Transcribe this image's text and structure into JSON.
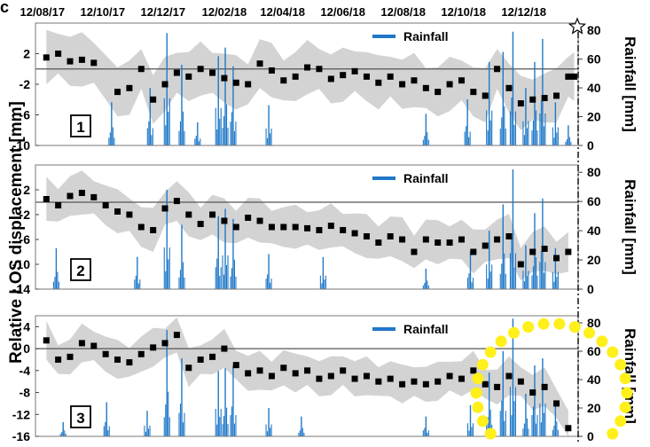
{
  "figure_label": "c",
  "y_axis_title": "Relative LOS displacement [mm]",
  "y2_axis_title": "Rainfall [mm]",
  "x_tick_labels": [
    "12/08/17",
    "12/10/17",
    "12/12/17",
    "12/02/18",
    "12/04/18",
    "12/06/18",
    "12/08/18",
    "12/10/18",
    "12/12/18"
  ],
  "event_marker": "star",
  "chart_data": [
    {
      "type": "scatter",
      "panel_label": "1",
      "legend": "Rainfall",
      "legend_placement": "top",
      "ylim": [
        -10,
        6
      ],
      "y_ticks": [
        "2",
        "-2",
        "-6",
        "-10"
      ],
      "y2lim": [
        0,
        85
      ],
      "y2_ticks": [
        "80",
        "60",
        "40",
        "20",
        "0"
      ],
      "x_range": [
        "2017-07-25",
        "2019-01-25"
      ],
      "reference_line": 0,
      "displacement": [
        [
          "2017-08-05",
          1.5
        ],
        [
          "2017-08-17",
          2
        ],
        [
          "2017-08-29",
          1
        ],
        [
          "2017-09-10",
          1.2
        ],
        [
          "2017-09-22",
          0.8
        ],
        [
          "2017-10-16",
          -3
        ],
        [
          "2017-10-28",
          -2.5
        ],
        [
          "2017-11-09",
          0
        ],
        [
          "2017-11-21",
          -4
        ],
        [
          "2017-12-03",
          -2
        ],
        [
          "2017-12-15",
          -0.5
        ],
        [
          "2017-12-27",
          -1
        ],
        [
          "2018-01-08",
          0
        ],
        [
          "2018-01-20",
          -0.5
        ],
        [
          "2018-02-01",
          -1.2
        ],
        [
          "2018-02-13",
          -1.8
        ],
        [
          "2018-02-25",
          -2
        ],
        [
          "2018-03-09",
          0.7
        ],
        [
          "2018-03-21",
          -0.2
        ],
        [
          "2018-04-02",
          -1.5
        ],
        [
          "2018-04-14",
          -1
        ],
        [
          "2018-04-26",
          0.2
        ],
        [
          "2018-05-08",
          0
        ],
        [
          "2018-05-20",
          -1.3
        ],
        [
          "2018-06-01",
          -0.8
        ],
        [
          "2018-06-13",
          -0.3
        ],
        [
          "2018-06-25",
          -1
        ],
        [
          "2018-07-07",
          -1.8
        ],
        [
          "2018-07-19",
          -1
        ],
        [
          "2018-07-31",
          -2
        ],
        [
          "2018-08-12",
          -1.5
        ],
        [
          "2018-08-24",
          -2.5
        ],
        [
          "2018-09-05",
          -3
        ],
        [
          "2018-09-17",
          -2
        ],
        [
          "2018-09-29",
          -1.5
        ],
        [
          "2018-10-11",
          -3
        ],
        [
          "2018-10-23",
          -3.5
        ],
        [
          "2018-11-04",
          0
        ],
        [
          "2018-11-16",
          -2.5
        ],
        [
          "2018-11-28",
          -4.5
        ],
        [
          "2018-12-10",
          -4
        ],
        [
          "2018-12-22",
          -3.8
        ],
        [
          "2019-01-03",
          -3.5
        ],
        [
          "2019-01-15",
          -1
        ],
        [
          "2019-01-21",
          -1
        ]
      ],
      "uncertainty_band_halfwidth": 3,
      "rainfall_spikes": [
        [
          "2017-10-10",
          30
        ],
        [
          "2017-11-18",
          40
        ],
        [
          "2017-12-05",
          78
        ],
        [
          "2017-12-20",
          56
        ],
        [
          "2018-01-05",
          16
        ],
        [
          "2018-01-26",
          62
        ],
        [
          "2018-02-02",
          68
        ],
        [
          "2018-02-10",
          55
        ],
        [
          "2018-03-18",
          28
        ],
        [
          "2018-08-24",
          22
        ],
        [
          "2018-10-05",
          32
        ],
        [
          "2018-10-27",
          58
        ],
        [
          "2018-11-10",
          65
        ],
        [
          "2018-11-20",
          79
        ],
        [
          "2018-12-03",
          40
        ],
        [
          "2018-12-12",
          58
        ],
        [
          "2018-12-20",
          74
        ],
        [
          "2019-01-02",
          30
        ],
        [
          "2019-01-15",
          14
        ]
      ]
    },
    {
      "type": "scatter",
      "panel_label": "2",
      "legend": "Rainfall",
      "legend_placement": "top",
      "ylim": [
        -14,
        6
      ],
      "y_ticks": [
        "2",
        "-2",
        "-6",
        "-10",
        "-14"
      ],
      "y2lim": [
        0,
        85
      ],
      "y2_ticks": [
        "80",
        "60",
        "40",
        "20",
        "0"
      ],
      "x_range": [
        "2017-07-25",
        "2019-01-25"
      ],
      "reference_line": 0,
      "displacement": [
        [
          "2017-08-05",
          0.5
        ],
        [
          "2017-08-17",
          -0.5
        ],
        [
          "2017-08-29",
          1
        ],
        [
          "2017-09-10",
          1.5
        ],
        [
          "2017-09-22",
          0.8
        ],
        [
          "2017-10-04",
          -0.5
        ],
        [
          "2017-10-16",
          -1.5
        ],
        [
          "2017-10-28",
          -2
        ],
        [
          "2017-11-09",
          -4
        ],
        [
          "2017-11-21",
          -4.5
        ],
        [
          "2017-12-03",
          -1
        ],
        [
          "2017-12-15",
          0.2
        ],
        [
          "2017-12-27",
          -2
        ],
        [
          "2018-01-08",
          -3.5
        ],
        [
          "2018-01-20",
          -2
        ],
        [
          "2018-02-01",
          -3
        ],
        [
          "2018-02-13",
          -4
        ],
        [
          "2018-02-25",
          -2.5
        ],
        [
          "2018-03-09",
          -3
        ],
        [
          "2018-03-21",
          -4
        ],
        [
          "2018-04-02",
          -4
        ],
        [
          "2018-04-14",
          -4
        ],
        [
          "2018-04-26",
          -4.2
        ],
        [
          "2018-05-08",
          -4.5
        ],
        [
          "2018-05-20",
          -3.8
        ],
        [
          "2018-06-01",
          -4.5
        ],
        [
          "2018-06-13",
          -5
        ],
        [
          "2018-06-25",
          -5.5
        ],
        [
          "2018-07-07",
          -6.5
        ],
        [
          "2018-07-19",
          -5.5
        ],
        [
          "2018-07-31",
          -6
        ],
        [
          "2018-08-12",
          -8
        ],
        [
          "2018-08-24",
          -6
        ],
        [
          "2018-09-05",
          -6.5
        ],
        [
          "2018-09-17",
          -6.5
        ],
        [
          "2018-09-29",
          -6
        ],
        [
          "2018-10-11",
          -8
        ],
        [
          "2018-10-23",
          -7
        ],
        [
          "2018-11-04",
          -6
        ],
        [
          "2018-11-16",
          -5.5
        ],
        [
          "2018-11-28",
          -10
        ],
        [
          "2018-12-10",
          -8
        ],
        [
          "2018-12-22",
          -7.5
        ],
        [
          "2019-01-03",
          -9
        ],
        [
          "2019-01-15",
          -8
        ]
      ],
      "uncertainty_band_halfwidth": 3,
      "rainfall_spikes": [
        [
          "2017-08-15",
          28
        ],
        [
          "2017-11-05",
          22
        ],
        [
          "2017-12-05",
          68
        ],
        [
          "2017-12-20",
          44
        ],
        [
          "2018-01-26",
          50
        ],
        [
          "2018-02-02",
          55
        ],
        [
          "2018-02-10",
          48
        ],
        [
          "2018-03-18",
          24
        ],
        [
          "2018-05-12",
          22
        ],
        [
          "2018-08-24",
          14
        ],
        [
          "2018-10-08",
          26
        ],
        [
          "2018-10-27",
          40
        ],
        [
          "2018-11-10",
          58
        ],
        [
          "2018-11-20",
          82
        ],
        [
          "2018-12-03",
          30
        ],
        [
          "2018-12-12",
          52
        ],
        [
          "2018-12-20",
          62
        ],
        [
          "2019-01-02",
          28
        ]
      ]
    },
    {
      "type": "scatter",
      "panel_label": "3",
      "legend": "Rainfall",
      "legend_placement": "top",
      "ylim": [
        -16,
        6
      ],
      "y_ticks": [
        "4",
        "0",
        "-4",
        "-8",
        "-12",
        "-16"
      ],
      "y2lim": [
        0,
        85
      ],
      "y2_ticks": [
        "80",
        "60",
        "40",
        "20",
        "0"
      ],
      "x_range": [
        "2017-07-25",
        "2019-01-25"
      ],
      "reference_line": 0,
      "highlight": "yellow dotted circle around the final months (Oct 2018 – Jan 2019)",
      "displacement": [
        [
          "2017-08-05",
          1.5
        ],
        [
          "2017-08-17",
          -2
        ],
        [
          "2017-08-29",
          -1.5
        ],
        [
          "2017-09-10",
          1
        ],
        [
          "2017-09-22",
          0.5
        ],
        [
          "2017-10-04",
          -1
        ],
        [
          "2017-10-16",
          -2
        ],
        [
          "2017-10-28",
          -2.5
        ],
        [
          "2017-11-09",
          -1
        ],
        [
          "2017-11-21",
          0.2
        ],
        [
          "2017-12-03",
          1
        ],
        [
          "2017-12-15",
          2.5
        ],
        [
          "2017-12-27",
          -3.5
        ],
        [
          "2018-01-08",
          -2
        ],
        [
          "2018-01-20",
          -1.5
        ],
        [
          "2018-02-01",
          0
        ],
        [
          "2018-02-13",
          -3
        ],
        [
          "2018-02-25",
          -4.5
        ],
        [
          "2018-03-09",
          -4
        ],
        [
          "2018-03-21",
          -5
        ],
        [
          "2018-04-02",
          -3.5
        ],
        [
          "2018-04-14",
          -4.5
        ],
        [
          "2018-04-26",
          -4
        ],
        [
          "2018-05-08",
          -5.5
        ],
        [
          "2018-05-20",
          -5
        ],
        [
          "2018-06-01",
          -4
        ],
        [
          "2018-06-13",
          -5.5
        ],
        [
          "2018-06-25",
          -5
        ],
        [
          "2018-07-07",
          -6
        ],
        [
          "2018-07-19",
          -5.5
        ],
        [
          "2018-07-31",
          -6.5
        ],
        [
          "2018-08-12",
          -6
        ],
        [
          "2018-08-24",
          -6.5
        ],
        [
          "2018-09-05",
          -6
        ],
        [
          "2018-09-17",
          -5
        ],
        [
          "2018-09-29",
          -5.5
        ],
        [
          "2018-10-11",
          -4
        ],
        [
          "2018-10-23",
          -6.5
        ],
        [
          "2018-11-04",
          -7
        ],
        [
          "2018-11-16",
          -5
        ],
        [
          "2018-11-28",
          -6
        ],
        [
          "2018-12-10",
          -8
        ],
        [
          "2018-12-22",
          -7
        ],
        [
          "2019-01-03",
          -10
        ],
        [
          "2019-01-15",
          -14.5
        ]
      ],
      "uncertainty_band_halfwidth": 3,
      "rainfall_spikes": [
        [
          "2017-08-22",
          10
        ],
        [
          "2017-10-05",
          24
        ],
        [
          "2017-11-15",
          18
        ],
        [
          "2017-12-05",
          75
        ],
        [
          "2017-12-20",
          55
        ],
        [
          "2018-01-26",
          46
        ],
        [
          "2018-02-02",
          48
        ],
        [
          "2018-02-10",
          50
        ],
        [
          "2018-03-18",
          20
        ],
        [
          "2018-04-20",
          14
        ],
        [
          "2018-08-24",
          14
        ],
        [
          "2018-10-08",
          22
        ],
        [
          "2018-10-27",
          45
        ],
        [
          "2018-11-10",
          60
        ],
        [
          "2018-11-20",
          83
        ],
        [
          "2018-12-03",
          30
        ],
        [
          "2018-12-12",
          50
        ],
        [
          "2018-12-20",
          55
        ],
        [
          "2019-01-02",
          25
        ]
      ]
    }
  ]
}
